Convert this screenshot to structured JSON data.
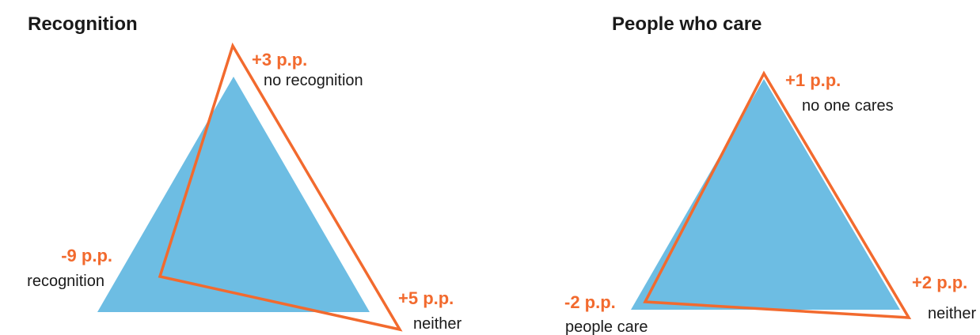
{
  "panels": [
    {
      "title": "Recognition",
      "corners": [
        {
          "change": "+3 p.p.",
          "label": "no recognition"
        },
        {
          "change": "-9 p.p.",
          "label": "recognition"
        },
        {
          "change": "+5 p.p.",
          "label": "neither"
        }
      ]
    },
    {
      "title": "People who care",
      "corners": [
        {
          "change": "+1 p.p.",
          "label": "no one cares"
        },
        {
          "change": "-2 p.p.",
          "label": "people care"
        },
        {
          "change": "+2 p.p.",
          "label": "neither"
        }
      ]
    }
  ]
}
